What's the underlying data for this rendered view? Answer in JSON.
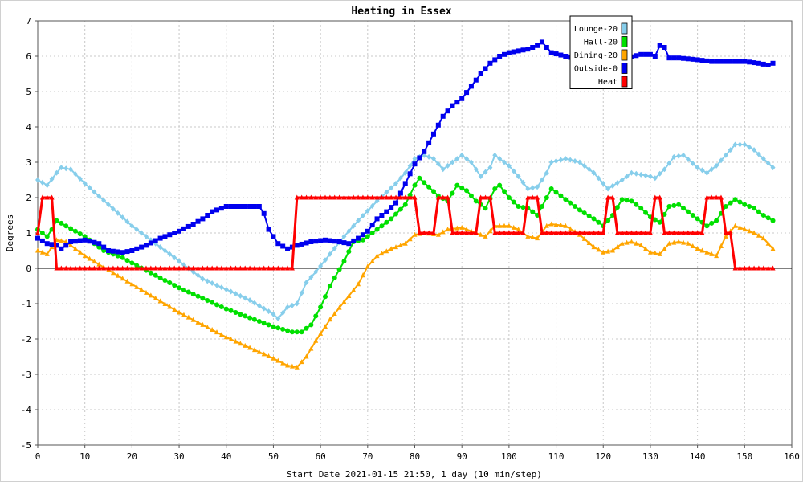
{
  "chart_data": {
    "type": "line",
    "title": "Heating in Essex",
    "xlabel": "Start Date 2021-01-15 21:50, 1 day (10 min/step)",
    "ylabel": "Degrees",
    "xlim": [
      0,
      160
    ],
    "ylim": [
      -5,
      7
    ],
    "x_ticks": [
      0,
      10,
      20,
      30,
      40,
      50,
      60,
      70,
      80,
      90,
      100,
      110,
      120,
      130,
      140,
      150,
      160
    ],
    "y_ticks": [
      -5,
      -4,
      -3,
      -2,
      -1,
      0,
      1,
      2,
      3,
      4,
      5,
      6,
      7
    ],
    "grid": true,
    "legend_position": "top-right",
    "series": [
      {
        "name": "Lounge-20",
        "color": "#87ceeb",
        "marker": "diamond",
        "points": [
          [
            0,
            2.5
          ],
          [
            2,
            2.35
          ],
          [
            4,
            2.7
          ],
          [
            5,
            2.85
          ],
          [
            7,
            2.8
          ],
          [
            10,
            2.4
          ],
          [
            15,
            1.8
          ],
          [
            20,
            1.2
          ],
          [
            25,
            0.7
          ],
          [
            30,
            0.2
          ],
          [
            35,
            -0.3
          ],
          [
            40,
            -0.6
          ],
          [
            45,
            -0.9
          ],
          [
            50,
            -1.3
          ],
          [
            51,
            -1.42
          ],
          [
            53,
            -1.1
          ],
          [
            55,
            -1.0
          ],
          [
            57,
            -0.4
          ],
          [
            59,
            -0.1
          ],
          [
            62,
            0.4
          ],
          [
            65,
            0.9
          ],
          [
            68,
            1.35
          ],
          [
            72,
            1.9
          ],
          [
            76,
            2.4
          ],
          [
            78,
            2.7
          ],
          [
            80,
            3.1
          ],
          [
            82,
            3.2
          ],
          [
            84,
            3.1
          ],
          [
            86,
            2.8
          ],
          [
            88,
            3.0
          ],
          [
            90,
            3.2
          ],
          [
            92,
            3.0
          ],
          [
            94,
            2.6
          ],
          [
            96,
            2.85
          ],
          [
            97,
            3.2
          ],
          [
            100,
            2.9
          ],
          [
            102,
            2.6
          ],
          [
            104,
            2.25
          ],
          [
            106,
            2.3
          ],
          [
            108,
            2.7
          ],
          [
            109,
            3.0
          ],
          [
            112,
            3.1
          ],
          [
            115,
            3.0
          ],
          [
            118,
            2.7
          ],
          [
            120,
            2.4
          ],
          [
            121,
            2.25
          ],
          [
            124,
            2.5
          ],
          [
            126,
            2.7
          ],
          [
            130,
            2.6
          ],
          [
            131,
            2.55
          ],
          [
            133,
            2.8
          ],
          [
            135,
            3.15
          ],
          [
            137,
            3.2
          ],
          [
            140,
            2.85
          ],
          [
            142,
            2.7
          ],
          [
            144,
            2.9
          ],
          [
            146,
            3.2
          ],
          [
            148,
            3.5
          ],
          [
            150,
            3.5
          ],
          [
            152,
            3.35
          ],
          [
            154,
            3.1
          ],
          [
            156,
            2.85
          ]
        ]
      },
      {
        "name": "Hall-20",
        "color": "#00e000",
        "marker": "circle",
        "points": [
          [
            0,
            1.1
          ],
          [
            2,
            0.9
          ],
          [
            3,
            1.1
          ],
          [
            4,
            1.35
          ],
          [
            6,
            1.2
          ],
          [
            10,
            0.9
          ],
          [
            14,
            0.5
          ],
          [
            16,
            0.4
          ],
          [
            18,
            0.3
          ],
          [
            20,
            0.15
          ],
          [
            25,
            -0.2
          ],
          [
            30,
            -0.55
          ],
          [
            35,
            -0.85
          ],
          [
            40,
            -1.15
          ],
          [
            45,
            -1.4
          ],
          [
            50,
            -1.65
          ],
          [
            54,
            -1.8
          ],
          [
            56,
            -1.8
          ],
          [
            58,
            -1.6
          ],
          [
            60,
            -1.1
          ],
          [
            62,
            -0.5
          ],
          [
            65,
            0.2
          ],
          [
            67,
            0.75
          ],
          [
            69,
            0.8
          ],
          [
            72,
            1.1
          ],
          [
            75,
            1.4
          ],
          [
            78,
            1.8
          ],
          [
            80,
            2.35
          ],
          [
            81,
            2.55
          ],
          [
            83,
            2.3
          ],
          [
            85,
            2.05
          ],
          [
            87,
            1.9
          ],
          [
            89,
            2.35
          ],
          [
            91,
            2.2
          ],
          [
            93,
            1.9
          ],
          [
            95,
            1.7
          ],
          [
            97,
            2.25
          ],
          [
            98,
            2.35
          ],
          [
            100,
            2.0
          ],
          [
            102,
            1.75
          ],
          [
            104,
            1.7
          ],
          [
            106,
            1.5
          ],
          [
            108,
            2.0
          ],
          [
            109,
            2.25
          ],
          [
            112,
            1.95
          ],
          [
            115,
            1.65
          ],
          [
            118,
            1.4
          ],
          [
            120,
            1.2
          ],
          [
            122,
            1.5
          ],
          [
            124,
            1.95
          ],
          [
            126,
            1.9
          ],
          [
            128,
            1.7
          ],
          [
            130,
            1.45
          ],
          [
            132,
            1.3
          ],
          [
            134,
            1.75
          ],
          [
            136,
            1.8
          ],
          [
            138,
            1.6
          ],
          [
            140,
            1.4
          ],
          [
            142,
            1.2
          ],
          [
            144,
            1.35
          ],
          [
            146,
            1.75
          ],
          [
            148,
            1.95
          ],
          [
            150,
            1.8
          ],
          [
            152,
            1.7
          ],
          [
            154,
            1.5
          ],
          [
            156,
            1.35
          ]
        ]
      },
      {
        "name": "Dining-20",
        "color": "#ffa500",
        "marker": "triangle",
        "points": [
          [
            0,
            0.5
          ],
          [
            2,
            0.4
          ],
          [
            3,
            0.6
          ],
          [
            4,
            0.8
          ],
          [
            6,
            0.75
          ],
          [
            10,
            0.35
          ],
          [
            15,
            -0.05
          ],
          [
            20,
            -0.45
          ],
          [
            25,
            -0.85
          ],
          [
            30,
            -1.25
          ],
          [
            35,
            -1.6
          ],
          [
            40,
            -1.95
          ],
          [
            45,
            -2.25
          ],
          [
            50,
            -2.55
          ],
          [
            53,
            -2.75
          ],
          [
            55,
            -2.8
          ],
          [
            57,
            -2.5
          ],
          [
            59,
            -2.05
          ],
          [
            62,
            -1.45
          ],
          [
            65,
            -0.95
          ],
          [
            68,
            -0.45
          ],
          [
            70,
            0.05
          ],
          [
            72,
            0.35
          ],
          [
            75,
            0.55
          ],
          [
            78,
            0.7
          ],
          [
            80,
            0.95
          ],
          [
            82,
            1.0
          ],
          [
            85,
            0.95
          ],
          [
            87,
            1.1
          ],
          [
            90,
            1.15
          ],
          [
            92,
            1.05
          ],
          [
            95,
            0.9
          ],
          [
            97,
            1.2
          ],
          [
            100,
            1.2
          ],
          [
            102,
            1.1
          ],
          [
            104,
            0.9
          ],
          [
            106,
            0.85
          ],
          [
            108,
            1.2
          ],
          [
            109,
            1.25
          ],
          [
            112,
            1.2
          ],
          [
            115,
            0.95
          ],
          [
            118,
            0.6
          ],
          [
            120,
            0.45
          ],
          [
            122,
            0.5
          ],
          [
            124,
            0.7
          ],
          [
            126,
            0.75
          ],
          [
            128,
            0.65
          ],
          [
            130,
            0.45
          ],
          [
            132,
            0.4
          ],
          [
            134,
            0.7
          ],
          [
            136,
            0.75
          ],
          [
            138,
            0.7
          ],
          [
            140,
            0.55
          ],
          [
            142,
            0.45
          ],
          [
            144,
            0.35
          ],
          [
            146,
            0.9
          ],
          [
            148,
            1.2
          ],
          [
            150,
            1.1
          ],
          [
            152,
            1.0
          ],
          [
            154,
            0.85
          ],
          [
            156,
            0.55
          ]
        ]
      },
      {
        "name": "Outside-0",
        "color": "#0000ee",
        "marker": "square",
        "points": [
          [
            0,
            0.85
          ],
          [
            2,
            0.7
          ],
          [
            4,
            0.65
          ],
          [
            5,
            0.55
          ],
          [
            7,
            0.75
          ],
          [
            10,
            0.8
          ],
          [
            13,
            0.7
          ],
          [
            15,
            0.5
          ],
          [
            18,
            0.45
          ],
          [
            20,
            0.5
          ],
          [
            23,
            0.65
          ],
          [
            26,
            0.85
          ],
          [
            30,
            1.05
          ],
          [
            33,
            1.25
          ],
          [
            35,
            1.4
          ],
          [
            37,
            1.6
          ],
          [
            40,
            1.75
          ],
          [
            43,
            1.75
          ],
          [
            47,
            1.75
          ],
          [
            48,
            1.55
          ],
          [
            49,
            1.1
          ],
          [
            51,
            0.7
          ],
          [
            53,
            0.55
          ],
          [
            55,
            0.65
          ],
          [
            58,
            0.75
          ],
          [
            61,
            0.8
          ],
          [
            64,
            0.75
          ],
          [
            66,
            0.7
          ],
          [
            68,
            0.85
          ],
          [
            70,
            1.05
          ],
          [
            72,
            1.4
          ],
          [
            74,
            1.6
          ],
          [
            76,
            1.85
          ],
          [
            78,
            2.4
          ],
          [
            80,
            2.95
          ],
          [
            82,
            3.3
          ],
          [
            84,
            3.8
          ],
          [
            86,
            4.3
          ],
          [
            88,
            4.6
          ],
          [
            90,
            4.8
          ],
          [
            92,
            5.15
          ],
          [
            94,
            5.5
          ],
          [
            96,
            5.8
          ],
          [
            98,
            6.0
          ],
          [
            100,
            6.1
          ],
          [
            102,
            6.15
          ],
          [
            104,
            6.2
          ],
          [
            106,
            6.3
          ],
          [
            107,
            6.4
          ],
          [
            109,
            6.1
          ],
          [
            112,
            6.0
          ],
          [
            115,
            5.9
          ],
          [
            118,
            5.95
          ],
          [
            120,
            6.05
          ],
          [
            122,
            6.1
          ],
          [
            125,
            5.95
          ],
          [
            128,
            6.05
          ],
          [
            130,
            6.05
          ],
          [
            131,
            6.0
          ],
          [
            132,
            6.3
          ],
          [
            133,
            6.25
          ],
          [
            134,
            5.95
          ],
          [
            136,
            5.95
          ],
          [
            140,
            5.9
          ],
          [
            143,
            5.85
          ],
          [
            146,
            5.85
          ],
          [
            150,
            5.85
          ],
          [
            153,
            5.8
          ],
          [
            155,
            5.75
          ],
          [
            156,
            5.8
          ]
        ]
      },
      {
        "name": "Heat",
        "color": "#ff0000",
        "marker": "triangle",
        "points": [
          [
            0,
            1
          ],
          [
            1,
            2
          ],
          [
            3,
            2
          ],
          [
            4,
            0
          ],
          [
            54,
            0
          ],
          [
            55,
            2
          ],
          [
            80,
            2
          ],
          [
            81,
            1
          ],
          [
            84,
            1
          ],
          [
            85,
            2
          ],
          [
            87,
            2
          ],
          [
            88,
            1
          ],
          [
            93,
            1
          ],
          [
            94,
            2
          ],
          [
            96,
            2
          ],
          [
            97,
            1
          ],
          [
            103,
            1
          ],
          [
            104,
            2
          ],
          [
            106,
            2
          ],
          [
            107,
            1
          ],
          [
            120,
            1
          ],
          [
            121,
            2
          ],
          [
            122,
            2
          ],
          [
            123,
            1
          ],
          [
            130,
            1
          ],
          [
            131,
            2
          ],
          [
            132,
            2
          ],
          [
            133,
            1
          ],
          [
            141,
            1
          ],
          [
            142,
            2
          ],
          [
            145,
            2
          ],
          [
            146,
            1
          ],
          [
            147,
            1
          ],
          [
            148,
            0
          ],
          [
            156,
            0
          ]
        ]
      }
    ]
  }
}
